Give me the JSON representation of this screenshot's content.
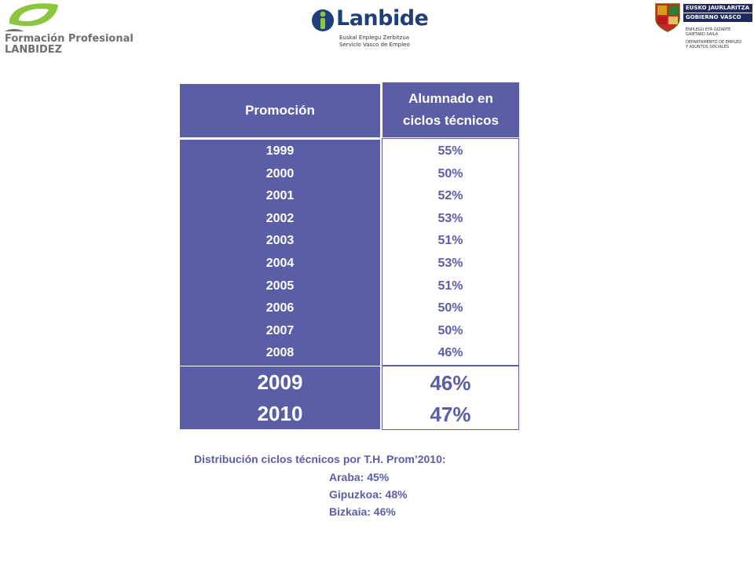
{
  "logos": {
    "formacion": {
      "line1": "Formación Profesional",
      "line2": "LANBIDEZ",
      "icon": "leaf-logo-icon"
    },
    "lanbide": {
      "name": "Lanbide",
      "sub1": "Euskal Enplegu Zerbitzua",
      "sub2": "Servicio Vasco de Empleo",
      "icon": "lanbide-person-icon"
    },
    "gobierno": {
      "bar1": "EUSKO JAURLARITZA",
      "bar2": "GOBIERNO VASCO",
      "dept1": "ENPLEGU ETA GIZARTE",
      "dept2": "GAIETAKO SAILA",
      "dept3": "DEPARTAMENTO DE EMPLEO",
      "dept4": "Y ASUNTOS SOCIALES",
      "icon": "coat-of-arms-icon"
    }
  },
  "table": {
    "header_col1": "Promoción",
    "header_col2_line1": "Alumnado en",
    "header_col2_line2": "ciclos técnicos",
    "rows": [
      {
        "year": "1999",
        "value": "55%"
      },
      {
        "year": "2000",
        "value": "50%"
      },
      {
        "year": "2001",
        "value": "52%"
      },
      {
        "year": "2002",
        "value": "53%"
      },
      {
        "year": "2003",
        "value": "51%"
      },
      {
        "year": "2004",
        "value": "53%"
      },
      {
        "year": "2005",
        "value": "51%"
      },
      {
        "year": "2006",
        "value": "50%"
      },
      {
        "year": "2007",
        "value": "50%"
      },
      {
        "year": "2008",
        "value": "46%"
      }
    ],
    "highlight_rows": [
      {
        "year": "2009",
        "value": "46%"
      },
      {
        "year": "2010",
        "value": "47%"
      }
    ]
  },
  "notes": {
    "title": "Distribución ciclos técnicos por T.H. Prom’2010:",
    "araba": "Araba: 45%",
    "gipuzkoa": "Gipuzkoa: 48%",
    "bizkaia": "Bizkaia: 46%"
  },
  "colors": {
    "accent": "#5b5ea6",
    "logo_green": "#8cc63f",
    "logo_navy": "#1d3f7a"
  }
}
